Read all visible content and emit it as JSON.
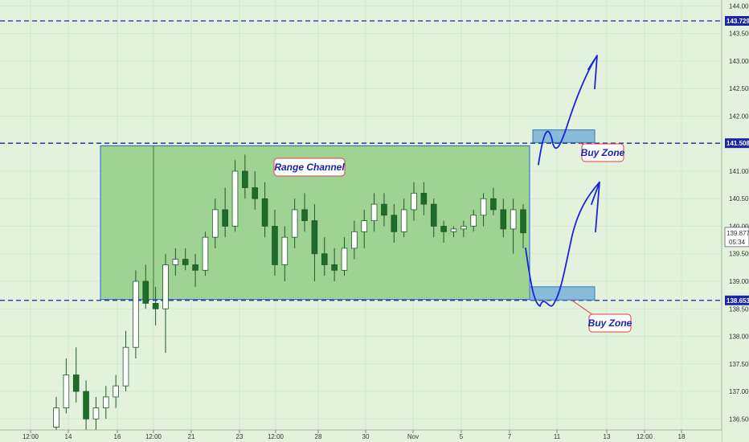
{
  "chart_data": {
    "type": "candlestick",
    "title": "",
    "x_ticks": [
      "12:00",
      "14",
      "16",
      "12:00",
      "21",
      "23",
      "12:00",
      "28",
      "30",
      "Nov",
      "5",
      "7",
      "11",
      "13",
      "12:00",
      "18"
    ],
    "y_ticks": [
      "136.500",
      "137.000",
      "137.500",
      "138.000",
      "138.500",
      "139.000",
      "139.500",
      "140.000",
      "140.500",
      "141.000",
      "141.500",
      "142.000",
      "142.500",
      "143.000",
      "143.500",
      "144.000"
    ],
    "ylim": [
      136.3,
      144.05
    ],
    "levels": [
      {
        "name": "top",
        "value": 143.729,
        "label": "143.729"
      },
      {
        "name": "resistance",
        "value": 141.508,
        "label": "141.508"
      },
      {
        "name": "support",
        "value": 138.653,
        "label": "138.653"
      }
    ],
    "last_price": {
      "value": 139.877,
      "label": "139.877"
    },
    "countdown": "05:34",
    "range_channel": {
      "label": "Range Channel",
      "top": 141.46,
      "bottom": 138.67
    },
    "buy_zones": [
      {
        "label": "Buy Zone",
        "top": 141.75,
        "bottom": 141.52
      },
      {
        "label": "Buy Zone",
        "top": 138.9,
        "bottom": 138.66
      }
    ],
    "candles": [
      [
        136.35,
        136.9,
        136.2,
        136.7
      ],
      [
        136.7,
        137.6,
        136.6,
        137.3
      ],
      [
        137.3,
        137.8,
        136.8,
        137.0
      ],
      [
        137.0,
        137.2,
        136.3,
        136.5
      ],
      [
        136.5,
        136.9,
        136.2,
        136.7
      ],
      [
        136.7,
        137.1,
        136.5,
        136.9
      ],
      [
        136.9,
        137.3,
        136.7,
        137.1
      ],
      [
        137.1,
        138.1,
        137.0,
        137.8
      ],
      [
        137.8,
        139.2,
        137.6,
        139.0
      ],
      [
        139.0,
        139.3,
        138.5,
        138.6
      ],
      [
        138.6,
        138.9,
        138.2,
        138.5
      ],
      [
        138.5,
        139.5,
        137.7,
        139.3
      ],
      [
        139.3,
        139.6,
        139.1,
        139.4
      ],
      [
        139.4,
        139.6,
        139.2,
        139.3
      ],
      [
        139.3,
        139.5,
        138.9,
        139.2
      ],
      [
        139.2,
        139.9,
        139.1,
        139.8
      ],
      [
        139.8,
        140.5,
        139.6,
        140.3
      ],
      [
        140.3,
        140.7,
        139.8,
        140.0
      ],
      [
        140.0,
        141.2,
        139.9,
        141.0
      ],
      [
        141.0,
        141.3,
        140.5,
        140.7
      ],
      [
        140.7,
        141.0,
        140.3,
        140.5
      ],
      [
        140.5,
        140.8,
        139.8,
        140.0
      ],
      [
        140.0,
        140.3,
        139.1,
        139.3
      ],
      [
        139.3,
        140.0,
        139.0,
        139.8
      ],
      [
        139.8,
        140.5,
        139.6,
        140.3
      ],
      [
        140.3,
        140.6,
        139.9,
        140.1
      ],
      [
        140.1,
        140.4,
        139.0,
        139.5
      ],
      [
        139.5,
        139.8,
        139.1,
        139.3
      ],
      [
        139.3,
        139.6,
        139.0,
        139.2
      ],
      [
        139.2,
        139.8,
        139.1,
        139.6
      ],
      [
        139.6,
        140.1,
        139.4,
        139.9
      ],
      [
        139.9,
        140.3,
        139.6,
        140.1
      ],
      [
        140.1,
        140.6,
        139.9,
        140.4
      ],
      [
        140.4,
        140.6,
        140.0,
        140.2
      ],
      [
        140.2,
        140.4,
        139.7,
        139.9
      ],
      [
        139.9,
        140.5,
        139.8,
        140.3
      ],
      [
        140.3,
        140.8,
        140.1,
        140.6
      ],
      [
        140.6,
        140.8,
        140.2,
        140.4
      ],
      [
        140.4,
        140.5,
        139.8,
        140.0
      ],
      [
        140.0,
        140.1,
        139.7,
        139.9
      ],
      [
        139.9,
        140.0,
        139.8,
        139.95
      ],
      [
        139.95,
        140.1,
        139.8,
        140.0
      ],
      [
        140.0,
        140.3,
        139.9,
        140.2
      ],
      [
        140.2,
        140.6,
        140.0,
        140.5
      ],
      [
        140.5,
        140.7,
        140.2,
        140.3
      ],
      [
        140.3,
        140.5,
        139.8,
        139.95
      ],
      [
        139.95,
        140.5,
        139.5,
        140.3
      ],
      [
        140.3,
        140.4,
        139.6,
        139.88
      ]
    ],
    "drawn_arrows": [
      {
        "name": "upper-projection",
        "from_x": "11",
        "to_x": "13",
        "from": 141.1,
        "to": 143.1
      },
      {
        "name": "lower-projection",
        "from_x": "7",
        "to_x": "13",
        "from": 139.6,
        "to": 140.8
      }
    ]
  },
  "colors": {
    "background": "#e2f2dc",
    "channel_fill": "#9ed394",
    "channel_border": "#2a66d6",
    "level_line": "#1a24a8",
    "zone_fill": "#6aa8d8",
    "candle_up": "#ffffff",
    "candle_down": "#1f6b2a",
    "note_border": "#e04040",
    "note_text": "#1a24a8"
  }
}
